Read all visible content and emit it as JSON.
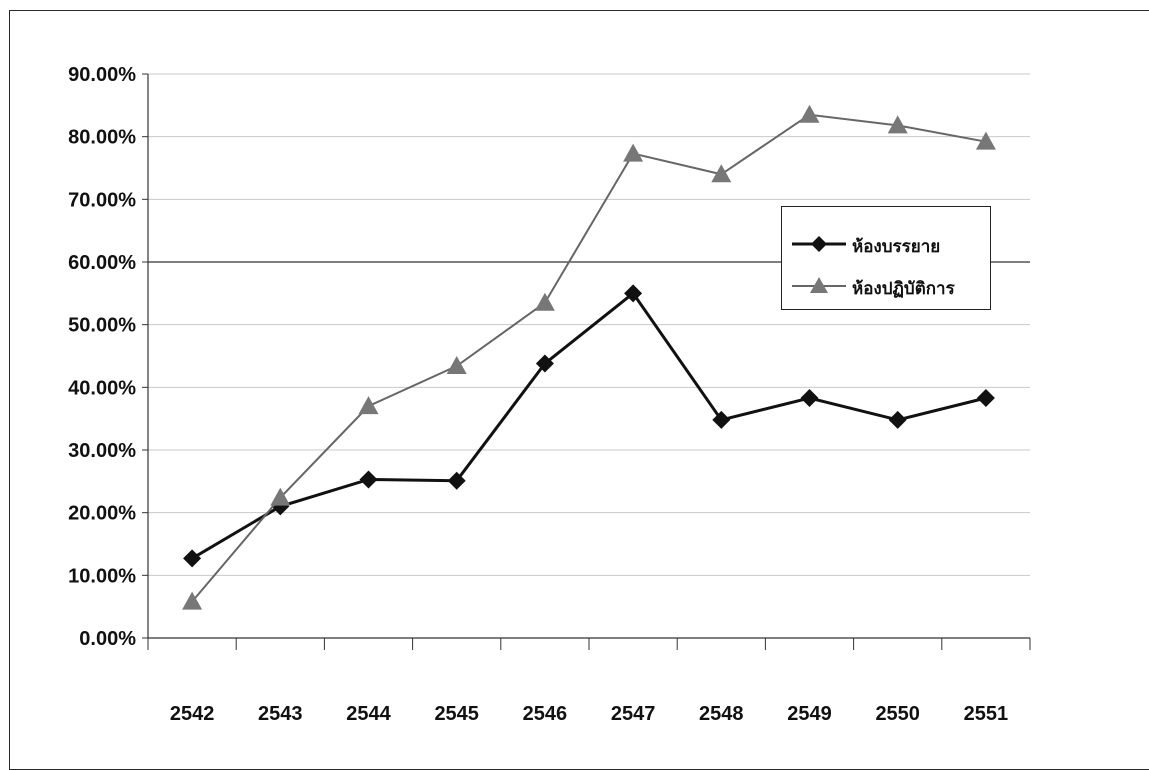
{
  "chart_data": {
    "type": "line",
    "title": "",
    "xlabel": "",
    "ylabel": "",
    "categories": [
      "2542",
      "2543",
      "2544",
      "2545",
      "2546",
      "2547",
      "2548",
      "2549",
      "2550",
      "2551"
    ],
    "y_ticks": [
      "0.00%",
      "10.00%",
      "20.00%",
      "30.00%",
      "40.00%",
      "50.00%",
      "60.00%",
      "70.00%",
      "80.00%",
      "90.00%"
    ],
    "ylim": [
      0,
      90
    ],
    "grid": true,
    "legend_position": "right",
    "series": [
      {
        "name": "ห้องบรรยาย",
        "marker": "diamond",
        "color": "#111111",
        "values": [
          12.7,
          21.0,
          25.3,
          25.1,
          43.8,
          55.0,
          34.8,
          38.3,
          34.8,
          38.3
        ]
      },
      {
        "name": "ห้องปฏิบัติการ",
        "marker": "triangle",
        "color": "#666666",
        "values": [
          5.8,
          22.4,
          37.0,
          43.4,
          53.5,
          77.3,
          74.0,
          83.5,
          81.8,
          79.2
        ]
      }
    ]
  }
}
